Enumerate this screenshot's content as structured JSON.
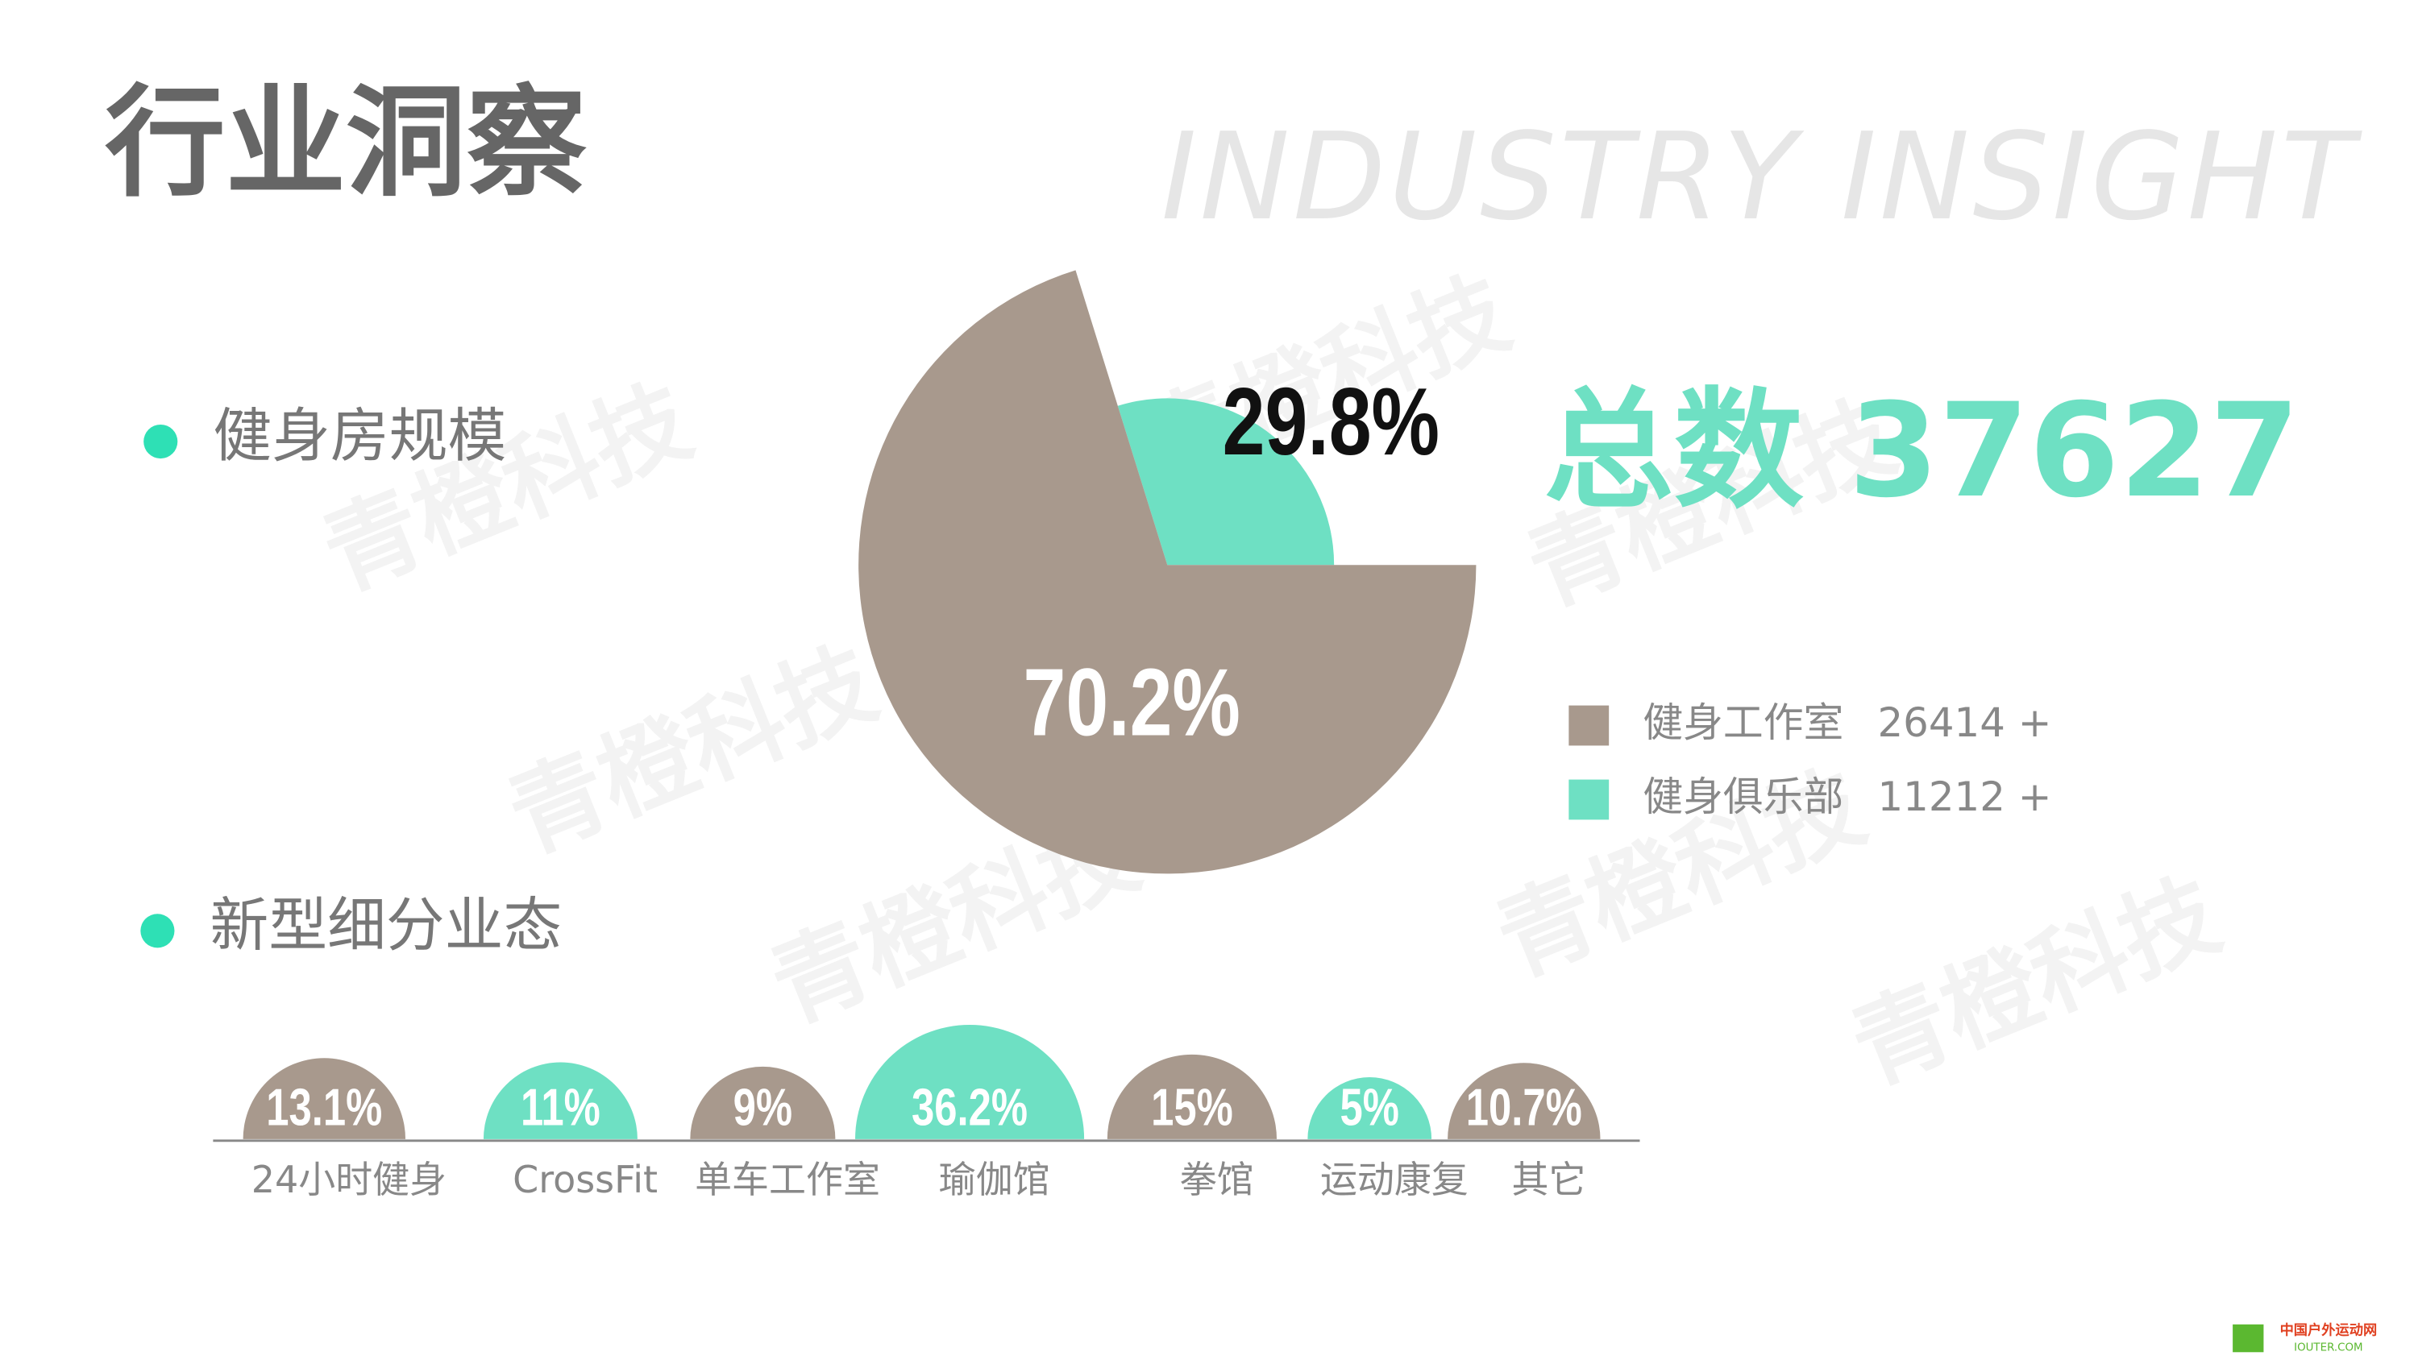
{
  "header": {
    "title": "行业洞察",
    "subtitle": "INDUSTRY INSIGHT"
  },
  "watermark": "青橙科技",
  "logo": {
    "name": "中国户外运动网",
    "site": "IOUTER.COM"
  },
  "sections": [
    "健身房规模",
    "新型细分业态"
  ],
  "total_label": "总数 37627",
  "chart_data": [
    {
      "type": "pie",
      "categories": [
        "健身工作室",
        "健身俱乐部"
      ],
      "values": [
        70.2,
        29.8
      ],
      "value_labels": [
        "70.2%",
        "29.8%"
      ],
      "colors": [
        "#a8998d",
        "#6ee0c3"
      ],
      "count_labels": [
        "26414 +",
        "11212 +"
      ]
    },
    {
      "type": "semicircle",
      "categories": [
        "24小时健身",
        "CrossFit",
        "单车工作室",
        "瑜伽馆",
        "拳馆",
        "运动康复",
        "其它"
      ],
      "values": [
        13.1,
        11,
        9,
        36.2,
        15,
        5,
        10.7
      ],
      "value_labels": [
        "13.1%",
        "11%",
        "9%",
        "36.2%",
        "15%",
        "5%",
        "10.7%"
      ],
      "colors": [
        "#a8998d",
        "#6ee0c3",
        "#a8998d",
        "#6ee0c3",
        "#a8998d",
        "#6ee0c3",
        "#a8998d"
      ]
    }
  ]
}
